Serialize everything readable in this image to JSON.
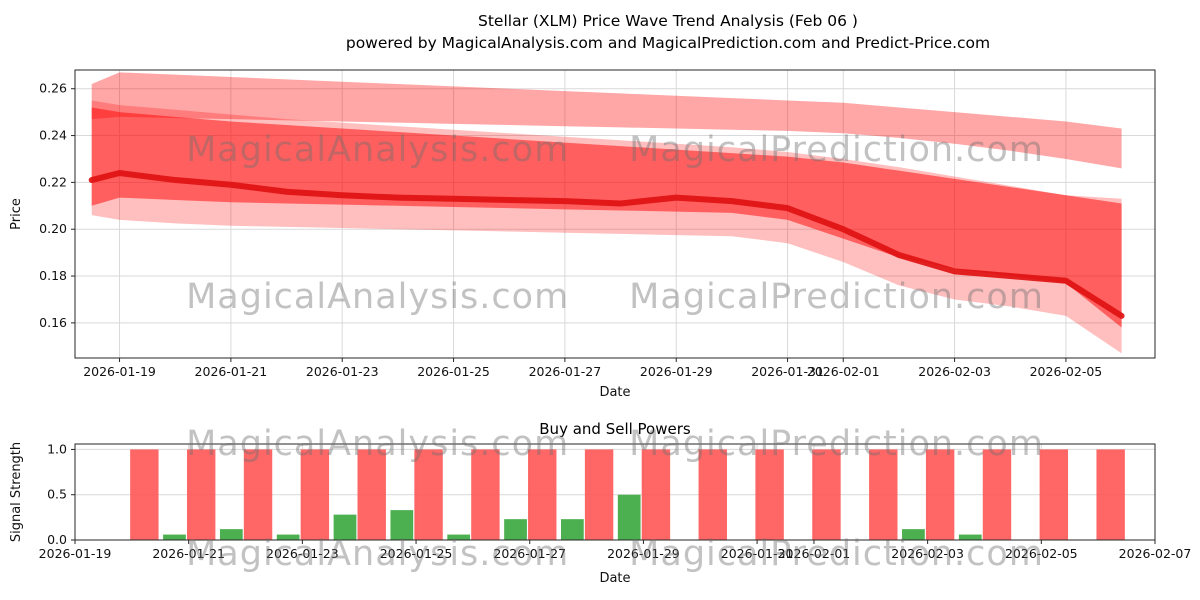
{
  "title": {
    "line1": "Stellar (XLM) Price Wave Trend Analysis (Feb 06 )",
    "line2": "powered by MagicalAnalysis.com and MagicalPrediction.com and Predict-Price.com"
  },
  "watermark": {
    "text1": "MagicalAnalysis.com",
    "text2": "MagicalPrediction.com"
  },
  "colors": {
    "wave": "#ff0000",
    "wave_line": "#e01212",
    "sell": "#ff5252",
    "buy": "#4caf50",
    "grid": "#d9d9d9",
    "axis": "#262626",
    "text": "#111111"
  },
  "chart_data": [
    {
      "type": "area",
      "title": "",
      "xlabel": "Date",
      "ylabel": "Price",
      "xlim": [
        -0.8,
        18.6
      ],
      "ylim": [
        0.145,
        0.268
      ],
      "grid": true,
      "y_ticks": [
        0.16,
        0.18,
        0.2,
        0.22,
        0.24,
        0.26
      ],
      "x_ticks": [
        {
          "day": 0,
          "label": "2026-01-19"
        },
        {
          "day": 2,
          "label": "2026-01-21"
        },
        {
          "day": 4,
          "label": "2026-01-23"
        },
        {
          "day": 6,
          "label": "2026-01-25"
        },
        {
          "day": 8,
          "label": "2026-01-27"
        },
        {
          "day": 10,
          "label": "2026-01-29"
        },
        {
          "day": 12,
          "label": "2026-01-31"
        },
        {
          "day": 13,
          "label": "2026-02-01"
        },
        {
          "day": 15,
          "label": "2026-02-03"
        },
        {
          "day": 17,
          "label": "2026-02-05"
        }
      ],
      "days": [
        -0.5,
        0,
        1,
        2,
        3,
        4,
        5,
        6,
        7,
        8,
        9,
        10,
        11,
        12,
        13,
        14,
        15,
        16,
        17,
        18
      ],
      "main_line": [
        0.221,
        0.224,
        0.221,
        0.219,
        0.216,
        0.2145,
        0.2135,
        0.213,
        0.2125,
        0.212,
        0.211,
        0.2135,
        0.212,
        0.209,
        0.2,
        0.189,
        0.182,
        0.18,
        0.178,
        0.163
      ],
      "bands": [
        {
          "name": "outer-top",
          "alpha": 0.35,
          "upper": [
            0.262,
            0.267,
            0.266,
            0.265,
            0.264,
            0.263,
            0.262,
            0.261,
            0.26,
            0.259,
            0.258,
            0.257,
            0.256,
            0.255,
            0.254,
            0.252,
            0.25,
            0.248,
            0.246,
            0.243
          ],
          "lower": [
            0.247,
            0.248,
            0.2475,
            0.247,
            0.2465,
            0.246,
            0.2455,
            0.245,
            0.2445,
            0.244,
            0.2435,
            0.243,
            0.2425,
            0.242,
            0.241,
            0.239,
            0.2365,
            0.2335,
            0.23,
            0.226
          ]
        },
        {
          "name": "wide",
          "alpha": 0.25,
          "upper": [
            0.255,
            0.253,
            0.251,
            0.249,
            0.247,
            0.2455,
            0.244,
            0.2425,
            0.241,
            0.2395,
            0.238,
            0.2365,
            0.235,
            0.233,
            0.23,
            0.2265,
            0.2225,
            0.2185,
            0.2145,
            0.213
          ],
          "lower": [
            0.206,
            0.204,
            0.2025,
            0.2015,
            0.201,
            0.2005,
            0.2,
            0.1995,
            0.199,
            0.1985,
            0.198,
            0.1975,
            0.197,
            0.194,
            0.186,
            0.176,
            0.17,
            0.167,
            0.163,
            0.147
          ]
        },
        {
          "name": "core",
          "alpha": 0.5,
          "upper": [
            0.252,
            0.25,
            0.248,
            0.246,
            0.2445,
            0.243,
            0.2415,
            0.24,
            0.2385,
            0.237,
            0.2355,
            0.234,
            0.2325,
            0.231,
            0.2285,
            0.225,
            0.2215,
            0.218,
            0.2145,
            0.211
          ],
          "lower": [
            0.21,
            0.2135,
            0.2125,
            0.2115,
            0.211,
            0.2105,
            0.21,
            0.2095,
            0.209,
            0.2085,
            0.208,
            0.2075,
            0.207,
            0.204,
            0.196,
            0.188,
            0.183,
            0.18,
            0.177,
            0.158
          ]
        }
      ]
    },
    {
      "type": "bar",
      "title": "Buy and Sell Powers",
      "xlabel": "Date",
      "ylabel": "Signal Strength",
      "xlim": [
        0,
        19
      ],
      "ylim": [
        0,
        1.06
      ],
      "grid": true,
      "y_ticks": [
        0.0,
        0.5,
        1.0
      ],
      "x_ticks": [
        {
          "day": 0,
          "label": "2026-01-19"
        },
        {
          "day": 2,
          "label": "2026-01-21"
        },
        {
          "day": 4,
          "label": "2026-01-23"
        },
        {
          "day": 6,
          "label": "2026-01-25"
        },
        {
          "day": 8,
          "label": "2026-01-27"
        },
        {
          "day": 10,
          "label": "2026-01-29"
        },
        {
          "day": 12,
          "label": "2026-01-31"
        },
        {
          "day": 13,
          "label": "2026-02-01"
        },
        {
          "day": 15,
          "label": "2026-02-03"
        },
        {
          "day": 17,
          "label": "2026-02-05"
        },
        {
          "day": 19,
          "label": "2026-02-07"
        }
      ],
      "bars": [
        {
          "date": "2026-01-20",
          "buy": 0.0,
          "sell": 1.0
        },
        {
          "date": "2026-01-21",
          "buy": 0.06,
          "sell": 1.0
        },
        {
          "date": "2026-01-22",
          "buy": 0.12,
          "sell": 1.0
        },
        {
          "date": "2026-01-23",
          "buy": 0.06,
          "sell": 1.0
        },
        {
          "date": "2026-01-24",
          "buy": 0.28,
          "sell": 1.0
        },
        {
          "date": "2026-01-25",
          "buy": 0.33,
          "sell": 1.0
        },
        {
          "date": "2026-01-26",
          "buy": 0.06,
          "sell": 1.0
        },
        {
          "date": "2026-01-27",
          "buy": 0.23,
          "sell": 1.0
        },
        {
          "date": "2026-01-28",
          "buy": 0.23,
          "sell": 1.0
        },
        {
          "date": "2026-01-29",
          "buy": 0.5,
          "sell": 1.0
        },
        {
          "date": "2026-01-30",
          "buy": 0.0,
          "sell": 1.0
        },
        {
          "date": "2026-01-31",
          "buy": 0.0,
          "sell": 1.0
        },
        {
          "date": "2026-02-01",
          "buy": 0.0,
          "sell": 1.0
        },
        {
          "date": "2026-02-02",
          "buy": 0.0,
          "sell": 1.0
        },
        {
          "date": "2026-02-03",
          "buy": 0.12,
          "sell": 1.0
        },
        {
          "date": "2026-02-04",
          "buy": 0.06,
          "sell": 1.0
        },
        {
          "date": "2026-02-05",
          "buy": 0.0,
          "sell": 1.0
        },
        {
          "date": "2026-02-06",
          "buy": 0.0,
          "sell": 1.0
        }
      ]
    }
  ]
}
